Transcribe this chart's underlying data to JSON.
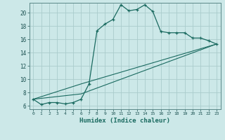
{
  "xlabel": "Humidex (Indice chaleur)",
  "background_color": "#cce8e8",
  "grid_color": "#aacccc",
  "line_color": "#1a6a60",
  "xlim": [
    -0.5,
    23.5
  ],
  "ylim": [
    5.5,
    21.5
  ],
  "yticks": [
    6,
    8,
    10,
    12,
    14,
    16,
    18,
    20
  ],
  "xticks": [
    0,
    1,
    2,
    3,
    4,
    5,
    6,
    7,
    8,
    9,
    10,
    11,
    12,
    13,
    14,
    15,
    16,
    17,
    18,
    19,
    20,
    21,
    22,
    23
  ],
  "series1_x": [
    0,
    1,
    2,
    3,
    4,
    5,
    6,
    7,
    8,
    9,
    10,
    11,
    12,
    13,
    14,
    15,
    16,
    17,
    18,
    19,
    20,
    21,
    22,
    23
  ],
  "series1_y": [
    7.0,
    6.2,
    6.5,
    6.5,
    6.3,
    6.5,
    7.0,
    9.3,
    17.3,
    18.3,
    19.0,
    21.2,
    20.3,
    20.5,
    21.2,
    20.2,
    17.2,
    17.0,
    17.0,
    17.0,
    16.2,
    16.2,
    15.8,
    15.3
  ],
  "series2_x": [
    0,
    6,
    23
  ],
  "series2_y": [
    7.0,
    7.8,
    15.3
  ],
  "series3_x": [
    0,
    6,
    23
  ],
  "series3_y": [
    7.0,
    9.3,
    15.3
  ]
}
